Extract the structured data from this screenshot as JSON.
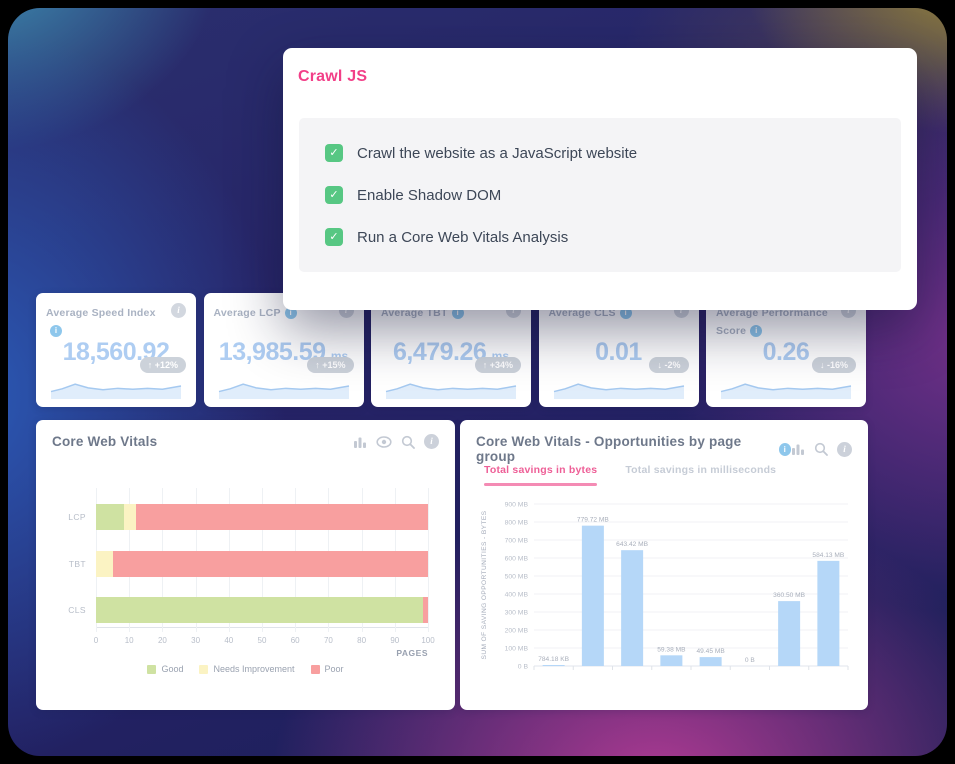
{
  "modal": {
    "title": "Crawl JS",
    "options": [
      {
        "label": "Crawl the website as a JavaScript website",
        "checked": true
      },
      {
        "label": "Enable Shadow DOM",
        "checked": true
      },
      {
        "label": "Run a Core Web Vitals Analysis",
        "checked": true
      }
    ]
  },
  "kpi_cards": [
    {
      "title": "Average Speed Index",
      "value": "18,560.92",
      "unit": "",
      "delta": "+12%",
      "direction": "up"
    },
    {
      "title": "Average LCP",
      "value": "13,985.59",
      "unit": "ms",
      "delta": "+15%",
      "direction": "up"
    },
    {
      "title": "Average TBT",
      "value": "6,479.26",
      "unit": "ms",
      "delta": "+34%",
      "direction": "up"
    },
    {
      "title": "Average CLS",
      "value": "0.01",
      "unit": "",
      "delta": "-2%",
      "direction": "down"
    },
    {
      "title": "Average Performance Score",
      "value": "0.26",
      "unit": "",
      "delta": "-16%",
      "direction": "down"
    }
  ],
  "chart_data": [
    {
      "type": "bar",
      "orientation": "horizontal",
      "stacked": true,
      "title": "Core Web Vitals",
      "categories": [
        "LCP",
        "TBT",
        "CLS"
      ],
      "series": [
        {
          "name": "Good",
          "color": "#cfe2a2",
          "values": [
            8.5,
            0,
            98.5
          ]
        },
        {
          "name": "Needs Improvement",
          "color": "#fbf3c3",
          "values": [
            3.5,
            5,
            0
          ]
        },
        {
          "name": "Poor",
          "color": "#f89f9f",
          "values": [
            88,
            95,
            1.5
          ]
        }
      ],
      "xlabel": "PAGES",
      "xlim": [
        0,
        100
      ],
      "xticks": [
        0,
        10,
        20,
        30,
        40,
        50,
        60,
        70,
        80,
        90,
        100
      ],
      "legend_position": "bottom",
      "toolbar_icons": [
        "bar-chart-icon",
        "eye-icon",
        "search-icon",
        "info-icon"
      ]
    },
    {
      "type": "bar",
      "orientation": "vertical",
      "title": "Core Web Vitals - Opportunities by page group",
      "tabs": [
        {
          "label": "Total savings in bytes",
          "active": true
        },
        {
          "label": "Total savings in milliseconds",
          "active": false
        }
      ],
      "ylabel": "SUM OF SAVING OPPORTUNITIES - BYTES",
      "yticks": [
        "0 B",
        "100 MB",
        "200 MB",
        "300 MB",
        "400 MB",
        "500 MB",
        "600 MB",
        "700 MB",
        "800 MB",
        "900 MB"
      ],
      "ylim_mb": [
        0,
        900
      ],
      "values_mb": [
        0.77,
        779.72,
        643.42,
        59.38,
        49.45,
        0,
        360.5,
        584.13
      ],
      "bar_labels": [
        "784.18 KB",
        "779.72 MB",
        "643.42 MB",
        "59.38 MB",
        "49.45 MB",
        "0 B",
        "360.50 MB",
        "584.13 MB"
      ],
      "bar_color": "#b5d7f8",
      "grid": true,
      "toolbar_icons": [
        "bar-chart-icon",
        "search-icon",
        "info-icon"
      ]
    }
  ],
  "colors": {
    "accent_pink": "#f23f88",
    "checkbox_green": "#57c783",
    "kpi_value_blue": "#aecdf2",
    "badge_gray": "#ccd2da",
    "good_green": "#cfe2a2",
    "needs_yellow": "#fbf3c3",
    "poor_red": "#f89f9f",
    "bar_blue": "#b5d7f8",
    "tab_active_pink": "#ee5f97"
  },
  "glyphs": {
    "up": "↑",
    "down": "↓",
    "check": "✓"
  }
}
